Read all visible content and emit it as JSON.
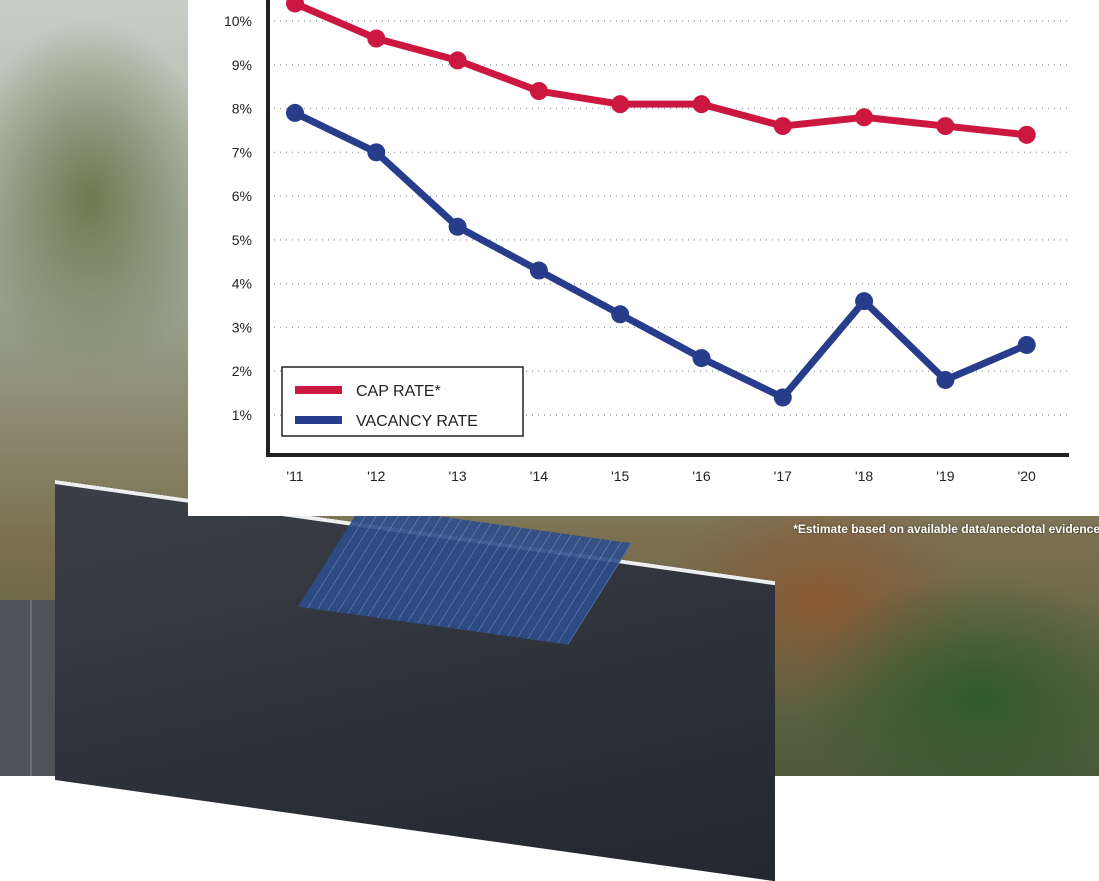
{
  "chart_data": {
    "type": "line",
    "categories": [
      "'11",
      "'12",
      "'13",
      "'14",
      "'15",
      "'16",
      "'17",
      "'18",
      "'19",
      "'20"
    ],
    "y_ticks": [
      "1%",
      "2%",
      "3%",
      "4%",
      "5%",
      "6%",
      "7%",
      "8%",
      "9%",
      "10%"
    ],
    "ylim": [
      0.2,
      10.3
    ],
    "grid": true,
    "legend_position": "bottom-left",
    "series": [
      {
        "name": "CAP RATE*",
        "color": "#cc1840",
        "values": [
          10.4,
          9.6,
          9.1,
          8.4,
          8.1,
          8.1,
          7.6,
          7.8,
          7.6,
          7.4
        ]
      },
      {
        "name": "VACANCY RATE",
        "color": "#283c8c",
        "values": [
          7.9,
          7.0,
          5.3,
          4.3,
          3.3,
          2.3,
          1.4,
          3.6,
          1.8,
          2.6
        ]
      }
    ],
    "footnote": "*Estimate based on available data/anecdotal evidence"
  }
}
